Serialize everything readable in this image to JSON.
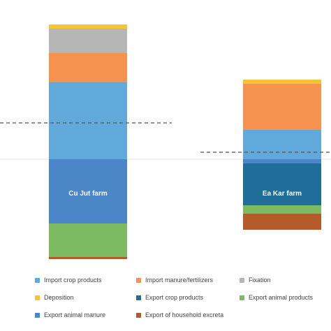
{
  "chart_data": {
    "type": "bar",
    "stacked": true,
    "diverging": true,
    "categories": [
      "Cu Jut farm",
      "Ea Kar farm"
    ],
    "bar_labels": [
      "Cu Jut farm",
      "Ea Kar farm"
    ],
    "reference_lines": [
      {
        "bar": "Cu Jut farm",
        "value": 52,
        "style": "dashed"
      },
      {
        "bar": "Ea Kar farm",
        "value": 10,
        "style": "dashed"
      }
    ],
    "series": [
      {
        "name": "Import crop products",
        "color": "#62A9DB",
        "direction": "in",
        "values": [
          110,
          42
        ]
      },
      {
        "name": "Import manure/fertilizers",
        "color": "#F5924D",
        "direction": "in",
        "values": [
          42,
          66
        ]
      },
      {
        "name": "Fixation",
        "color": "#B6B6B6",
        "direction": "in",
        "values": [
          35,
          0
        ]
      },
      {
        "name": "Deposition",
        "color": "#F4C631",
        "direction": "in",
        "values": [
          6,
          6
        ]
      },
      {
        "name": "Export crop products",
        "color": "#1F6E99",
        "direction": "out",
        "values": [
          0,
          60
        ]
      },
      {
        "name": "Export animal products",
        "color": "#7DBB62",
        "direction": "out",
        "values": [
          48,
          12
        ]
      },
      {
        "name": "Export animal manure",
        "color": "#4A86C8",
        "direction": "out",
        "values": [
          92,
          6
        ]
      },
      {
        "name": "Export of household excreta",
        "color": "#B45A2B",
        "direction": "out",
        "values": [
          3,
          23
        ]
      }
    ],
    "legend": {
      "position": "bottom",
      "columns": 3
    },
    "grid": false
  }
}
